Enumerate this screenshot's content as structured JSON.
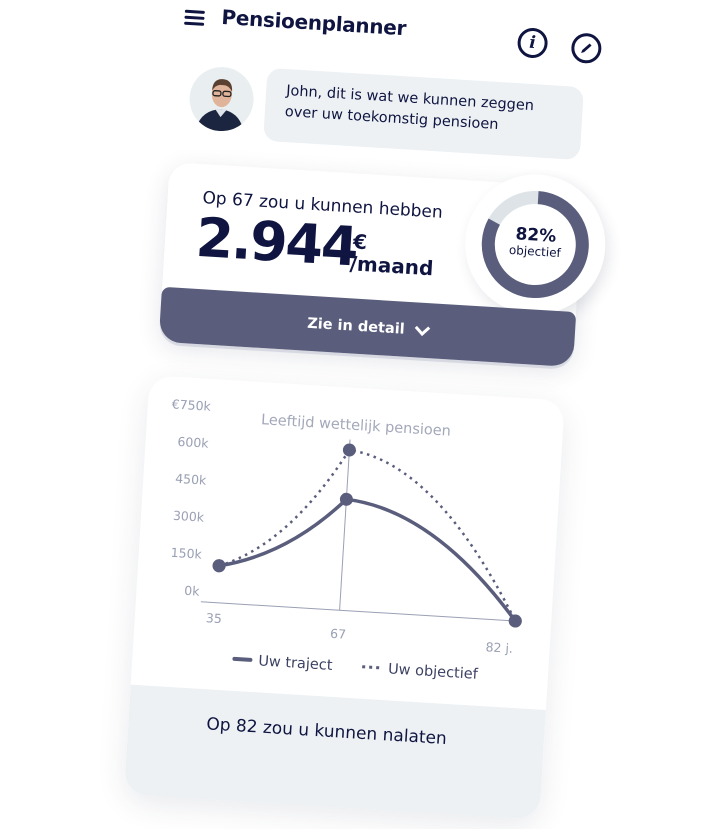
{
  "header": {
    "title": "Pensioenplanner",
    "menu_icon": "hamburger-icon",
    "info_icon": "info-icon",
    "edit_icon": "pencil-icon"
  },
  "advisor": {
    "message": "John, dit is wat we kunnen zeggen over uw toekomstig pensioen"
  },
  "summary": {
    "lead": "Op 67 zou u kunnen hebben",
    "amount": "2.944",
    "currency": "€",
    "unit": "/maand",
    "progress_percent": 82,
    "progress_label": "82%",
    "progress_caption": "objectief",
    "detail_button": "Zie in detail"
  },
  "colors": {
    "navy": "#0f1540",
    "slate": "#5a5e7c",
    "light": "#edf1f4",
    "track": "#dde3e6"
  },
  "chart_data": {
    "type": "line",
    "title": "Leeftijd wettelijk pensioen",
    "categories": [
      "35",
      "67",
      "82 j."
    ],
    "y_ticks": [
      "0k",
      "150k",
      "300k",
      "450k",
      "600k",
      "€750k"
    ],
    "ylim": [
      0,
      750
    ],
    "series": [
      {
        "name": "Uw traject",
        "style": "solid",
        "values": [
          150,
          450,
          0
        ]
      },
      {
        "name": "Uw objectief",
        "style": "dotted",
        "values": [
          150,
          650,
          0
        ]
      }
    ],
    "legend": "bottom"
  },
  "footer": {
    "title": "Op 82 zou u kunnen nalaten"
  }
}
